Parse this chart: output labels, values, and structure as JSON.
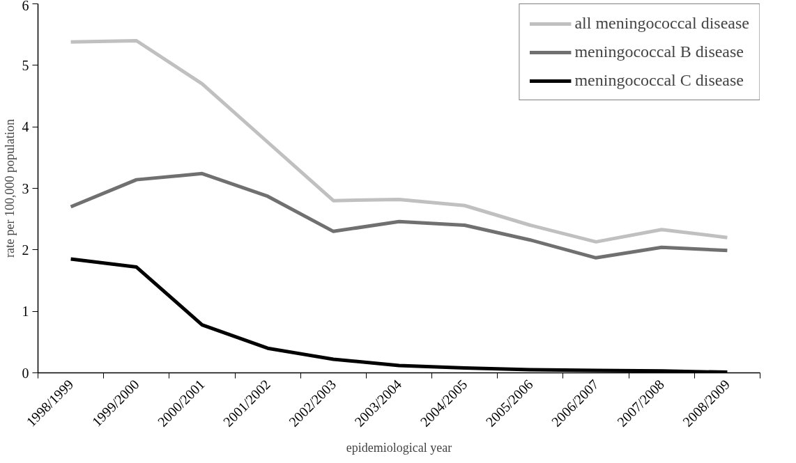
{
  "chart_data": {
    "type": "line",
    "xlabel": "epidemiological year",
    "ylabel": "rate per 100,000 population",
    "categories": [
      "1998/1999",
      "1999/2000",
      "2000/2001",
      "2001/2002",
      "2002/2003",
      "2003/2004",
      "2004/2005",
      "2005/2006",
      "2006/2007",
      "2007/2008",
      "2008/2009"
    ],
    "series": [
      {
        "name": "all meningococcal disease",
        "color": "#c0c0c0",
        "values": [
          5.38,
          5.4,
          4.7,
          3.75,
          2.8,
          2.82,
          2.72,
          2.4,
          2.13,
          2.33,
          2.2
        ]
      },
      {
        "name": "meningococcal B disease",
        "color": "#707070",
        "values": [
          2.7,
          3.14,
          3.24,
          2.87,
          2.3,
          2.46,
          2.4,
          2.16,
          1.87,
          2.04,
          1.99
        ]
      },
      {
        "name": "meningococcal C disease",
        "color": "#000000",
        "values": [
          1.85,
          1.72,
          0.78,
          0.4,
          0.22,
          0.12,
          0.08,
          0.05,
          0.04,
          0.03,
          0.01
        ]
      }
    ],
    "ylim": [
      0,
      6
    ],
    "yticks": [
      0,
      1,
      2,
      3,
      4,
      5,
      6
    ],
    "grid": false,
    "legend": "top right",
    "marker": "none",
    "line_style": "solid"
  }
}
